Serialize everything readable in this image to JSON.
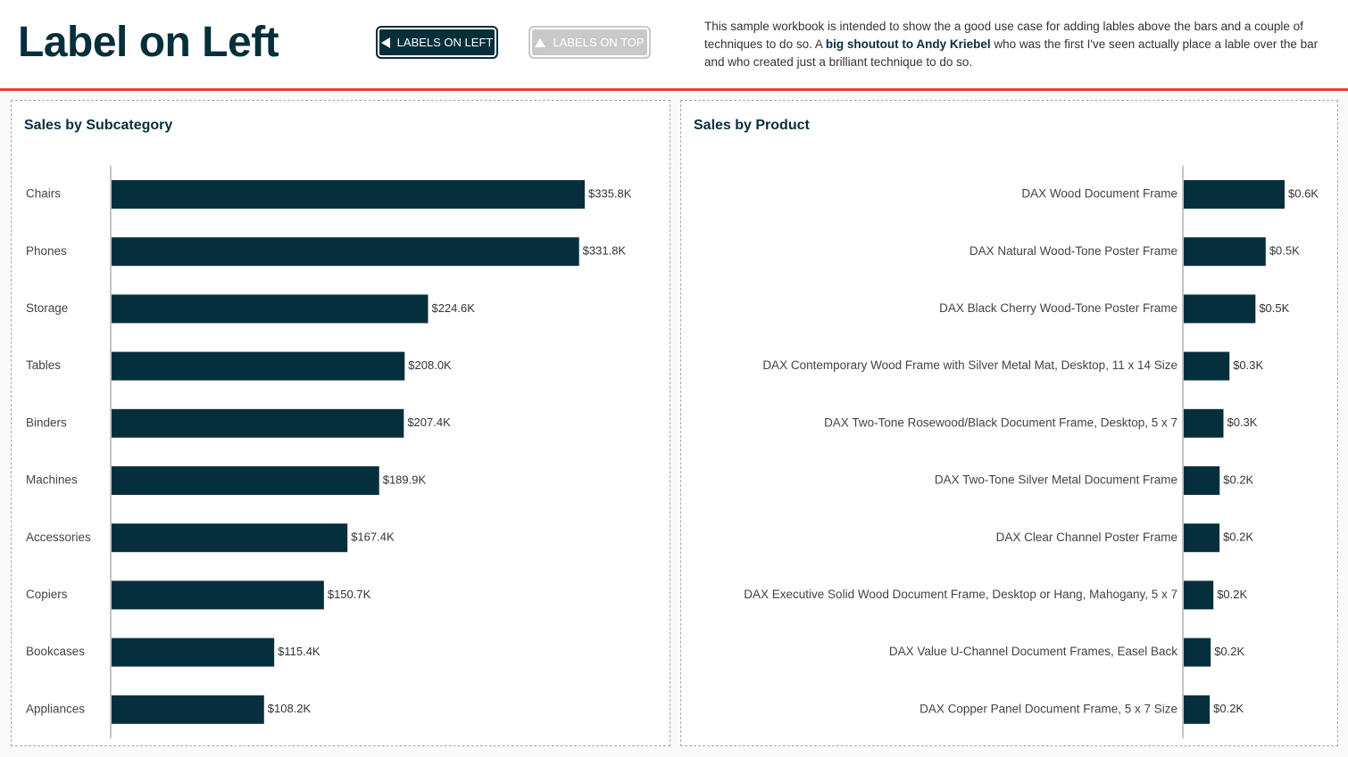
{
  "header": {
    "title": "Label on Left",
    "buttons": [
      "LABELS ON LEFT",
      "LABELS ON TOP"
    ],
    "description": [
      "This sample workbook is intended to show the a good use case for adding lables above the bars and a couple of techniques to do so. A ",
      "big shoutout to Andy Kriebel",
      " who was the first I've seen actually place a lable over the bar and who created just a brilliant technique to do so."
    ]
  },
  "chart_data": [
    {
      "type": "bar",
      "title": "Sales by Subcategory",
      "orientation": "horizontal",
      "color": "#062f3c",
      "categories": [
        "Chairs",
        "Phones",
        "Storage",
        "Tables",
        "Binders",
        "Machines",
        "Accessories",
        "Copiers",
        "Bookcases",
        "Appliances"
      ],
      "values": [
        335800,
        331800,
        224600,
        208000,
        207400,
        189900,
        167400,
        150700,
        115400,
        108200
      ],
      "value_labels": [
        "$335.8K",
        "$331.8K",
        "$224.6K",
        "$208.0K",
        "$207.4K",
        "$189.9K",
        "$167.4K",
        "$150.7K",
        "$115.4K",
        "$108.2K"
      ]
    },
    {
      "type": "bar",
      "title": "Sales by Product",
      "orientation": "horizontal",
      "color": "#062f3c",
      "categories": [
        "DAX Wood Document Frame",
        "DAX Natural Wood-Tone Poster Frame",
        "DAX Black Cherry Wood-Tone Poster Frame",
        "DAX Contemporary Wood Frame with Silver Metal Mat, Desktop, 11 x 14 Size",
        "DAX Two-Tone Rosewood/Black Document Frame, Desktop, 5 x 7",
        "DAX Two-Tone Silver Metal Document Frame",
        "DAX Clear Channel Poster Frame",
        "DAX Executive Solid Wood Document Frame, Desktop or Hang, Mahogany, 5 x 7",
        "DAX Value U-Channel Document Frames, Easel Back",
        "DAX Copper Panel Document Frame, 5 x 7 Size"
      ],
      "values": [
        640,
        520,
        455,
        290,
        252,
        228,
        227,
        188,
        171,
        165
      ],
      "value_labels": [
        "$0.6K",
        "$0.5K",
        "$0.5K",
        "$0.3K",
        "$0.3K",
        "$0.2K",
        "$0.2K",
        "$0.2K",
        "$0.2K",
        "$0.2K"
      ]
    }
  ]
}
